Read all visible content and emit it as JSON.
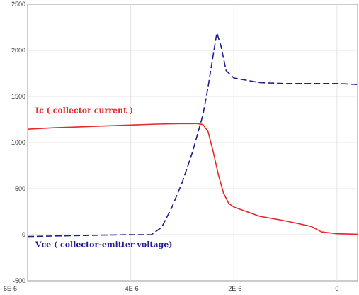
{
  "chart_data": {
    "type": "line",
    "title": "",
    "xlabel": "",
    "ylabel": "",
    "xlim": [
      -6e-06,
      4e-07
    ],
    "ylim": [
      -500,
      2500
    ],
    "grid": true,
    "x_ticks": [
      -6e-06,
      -4e-06,
      -2e-06,
      0
    ],
    "x_tick_labels": [
      "-6E-6",
      "-4E-6",
      "-2E-6",
      "0"
    ],
    "y_ticks": [
      -500,
      0,
      500,
      1000,
      1500,
      2000,
      2500
    ],
    "y_tick_labels": [
      "-500",
      "0",
      "500",
      "1000",
      "1500",
      "2000",
      "2500"
    ],
    "series": [
      {
        "name": "Ic ( collector current )",
        "color": "#e8282a",
        "dash": "solid",
        "label_at": [
          -5.85e-06,
          1320
        ],
        "x": [
          -6e-06,
          -5.5e-06,
          -5e-06,
          -4.5e-06,
          -4e-06,
          -3.5e-06,
          -3e-06,
          -2.7e-06,
          -2.6e-06,
          -2.5e-06,
          -2.4e-06,
          -2.3e-06,
          -2.2e-06,
          -2.1e-06,
          -2e-06,
          -1.5e-06,
          -1e-06,
          -5e-07,
          -3e-07,
          0,
          4e-07
        ],
        "y": [
          1145,
          1160,
          1170,
          1180,
          1190,
          1200,
          1205,
          1205,
          1195,
          1120,
          900,
          650,
          450,
          340,
          300,
          200,
          150,
          90,
          30,
          10,
          5
        ]
      },
      {
        "name": "Vce ( collector-emitter voltage)",
        "color": "#1e1e8c",
        "dash": "dashed",
        "label_at": [
          -5.85e-06,
          -135
        ],
        "x": [
          -6e-06,
          -5.5e-06,
          -5e-06,
          -4.5e-06,
          -4e-06,
          -3.6e-06,
          -3.4e-06,
          -3.2e-06,
          -3e-06,
          -2.8e-06,
          -2.6e-06,
          -2.5e-06,
          -2.4e-06,
          -2.33e-06,
          -2.25e-06,
          -2.15e-06,
          -2e-06,
          -1.5e-06,
          -1e-06,
          -5e-07,
          0,
          4e-07
        ],
        "y": [
          -20,
          -15,
          -10,
          -5,
          0,
          0,
          80,
          300,
          570,
          900,
          1300,
          1600,
          1950,
          2190,
          2050,
          1780,
          1700,
          1650,
          1640,
          1640,
          1640,
          1630
        ]
      }
    ]
  }
}
